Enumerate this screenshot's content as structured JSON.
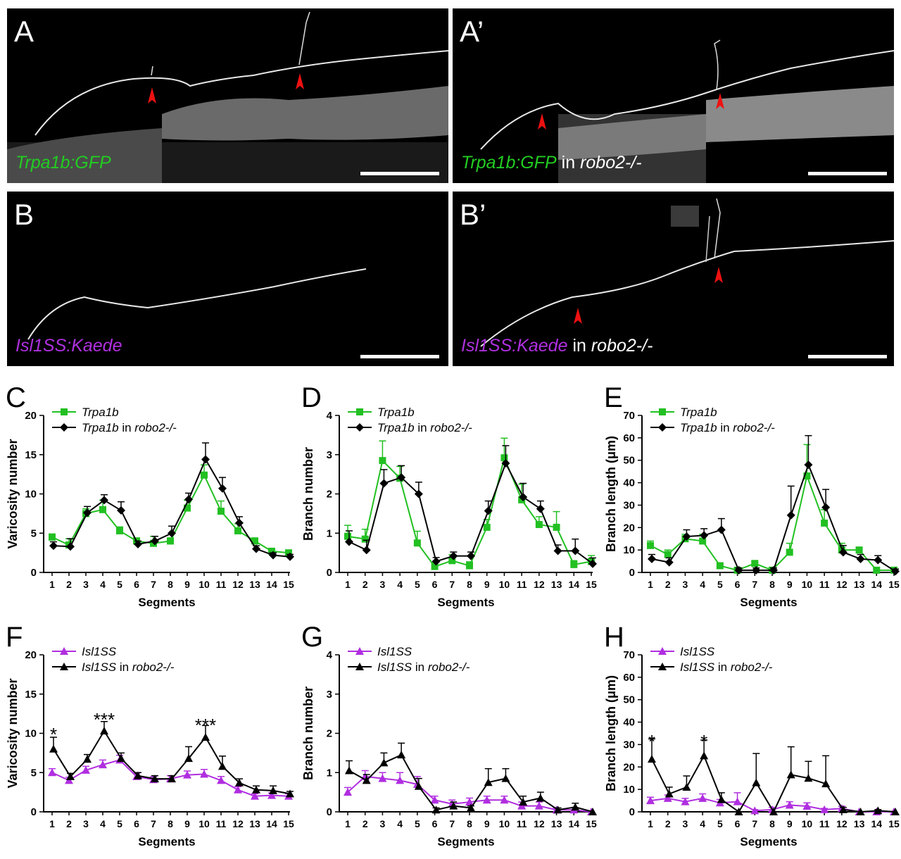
{
  "panels": {
    "A": {
      "letter": "A",
      "caption_italic": "Trpa1b:GFP",
      "caption_rest": "",
      "caption_tail": "",
      "color": "#22cc22"
    },
    "A2": {
      "letter": "A’",
      "caption_italic": "Trpa1b:GFP",
      "caption_rest": " in ",
      "caption_tail": "robo2-/-",
      "color": "#22cc22"
    },
    "B": {
      "letter": "B",
      "caption_italic": "Isl1SS:Kaede",
      "caption_rest": "",
      "caption_tail": "",
      "color": "#b030e0"
    },
    "B2": {
      "letter": "B’",
      "caption_italic": "Isl1SS:Kaede",
      "caption_rest": " in ",
      "caption_tail": "robo2-/-",
      "color": "#b030e0"
    }
  },
  "colors": {
    "green": "#22c022",
    "purple": "#b02ee0",
    "black": "#000000",
    "arrow": "#ee1111"
  },
  "chart_data": [
    {
      "panel": "C",
      "type": "line",
      "xlabel": "Segments",
      "ylabel": "Varicosity number",
      "ylim": [
        0,
        20
      ],
      "yticks": [
        0,
        5,
        10,
        15,
        20
      ],
      "categories": [
        "1",
        "2",
        "3",
        "4",
        "5",
        "6",
        "7",
        "8",
        "9",
        "10",
        "11",
        "12",
        "13",
        "14",
        "15"
      ],
      "marker": "square",
      "legend": [
        {
          "italic": "Trpa1b",
          "rest": ""
        },
        {
          "italic": "Trpa1b",
          "rest": " in robo2-/-"
        }
      ],
      "series": [
        {
          "name": "Trpa1b",
          "color": "#22c022",
          "values": [
            4.5,
            3.5,
            7.5,
            8.0,
            5.3,
            4.0,
            3.7,
            4.0,
            8.2,
            12.4,
            7.8,
            5.3,
            4.0,
            2.7,
            2.5
          ],
          "errors": [
            0.4,
            0.8,
            0.6,
            1.2,
            0.5,
            0.4,
            0.9,
            0.4,
            1.0,
            1.3,
            1.3,
            0.9,
            0.4,
            0.3,
            0.3
          ]
        },
        {
          "name": "Trpa1b in robo2-/-",
          "color": "#000000",
          "values": [
            3.4,
            3.3,
            7.6,
            9.2,
            7.9,
            3.6,
            4.0,
            5.0,
            9.3,
            14.4,
            10.7,
            6.3,
            3.0,
            2.2,
            2.0
          ],
          "errors": [
            0.5,
            1.0,
            0.8,
            0.7,
            1.1,
            0.4,
            0.6,
            0.9,
            0.8,
            2.1,
            1.4,
            0.8,
            0.4,
            0.3,
            0.3
          ]
        }
      ]
    },
    {
      "panel": "D",
      "type": "line",
      "xlabel": "Segments",
      "ylabel": "Branch number",
      "ylim": [
        0,
        4
      ],
      "yticks": [
        0,
        1,
        2,
        3,
        4
      ],
      "categories": [
        "1",
        "2",
        "3",
        "4",
        "5",
        "6",
        "7",
        "8",
        "9",
        "10",
        "11",
        "12",
        "13",
        "14",
        "15"
      ],
      "marker": "square",
      "legend": [
        {
          "italic": "Trpa1b",
          "rest": ""
        },
        {
          "italic": "Trpa1b",
          "rest": " in robo2-/-"
        }
      ],
      "series": [
        {
          "name": "Trpa1b",
          "color": "#22c022",
          "values": [
            0.92,
            0.85,
            2.85,
            2.4,
            0.75,
            0.15,
            0.3,
            0.17,
            1.15,
            2.92,
            1.85,
            1.22,
            1.15,
            0.2,
            0.28
          ],
          "errors": [
            0.28,
            0.25,
            0.5,
            0.3,
            0.3,
            0.1,
            0.15,
            0.1,
            0.2,
            0.5,
            0.4,
            0.2,
            0.4,
            0.1,
            0.15
          ]
        },
        {
          "name": "Trpa1b in robo2-/-",
          "color": "#000000",
          "values": [
            0.78,
            0.57,
            2.27,
            2.42,
            2.0,
            0.28,
            0.42,
            0.42,
            1.57,
            2.78,
            1.92,
            1.62,
            0.55,
            0.55,
            0.22
          ],
          "errors": [
            0.28,
            0.25,
            0.35,
            0.3,
            0.3,
            0.1,
            0.1,
            0.1,
            0.25,
            0.45,
            0.35,
            0.2,
            0.15,
            0.3,
            0.15
          ]
        }
      ]
    },
    {
      "panel": "E",
      "type": "line",
      "xlabel": "Segments",
      "ylabel": "Branch length (μm)",
      "ylim": [
        0,
        70
      ],
      "yticks": [
        0,
        10,
        20,
        30,
        40,
        50,
        60,
        70
      ],
      "categories": [
        "1",
        "2",
        "3",
        "4",
        "5",
        "6",
        "7",
        "8",
        "9",
        "10",
        "11",
        "12",
        "13",
        "14",
        "15"
      ],
      "marker": "square",
      "legend": [
        {
          "italic": "Trpa1b",
          "rest": ""
        },
        {
          "italic": "Trpa1b",
          "rest": " in robo2-/-"
        }
      ],
      "series": [
        {
          "name": "Trpa1b",
          "color": "#22c022",
          "values": [
            12,
            8,
            15,
            14,
            3,
            1,
            4,
            1,
            9,
            43,
            22,
            10,
            10,
            1,
            1
          ],
          "errors": [
            2,
            2,
            2,
            3,
            1,
            1,
            1,
            1,
            4,
            14,
            6,
            3,
            1,
            1,
            1
          ]
        },
        {
          "name": "Trpa1b in robo2-/-",
          "color": "#000000",
          "values": [
            6,
            4.5,
            16,
            16.5,
            19,
            1,
            1,
            1,
            25.5,
            48,
            29,
            9,
            6,
            5.5,
            0.5
          ],
          "errors": [
            2,
            2,
            3,
            3,
            5,
            1,
            1,
            1,
            13,
            13,
            8,
            3,
            2,
            2,
            1
          ]
        }
      ]
    },
    {
      "panel": "F",
      "type": "line",
      "xlabel": "Segments",
      "ylabel": "Varicosity number",
      "ylim": [
        0,
        20
      ],
      "yticks": [
        0,
        5,
        10,
        15,
        20
      ],
      "categories": [
        "1",
        "2",
        "3",
        "4",
        "5",
        "6",
        "7",
        "8",
        "9",
        "10",
        "11",
        "12",
        "13",
        "14",
        "15"
      ],
      "marker": "triangle",
      "legend": [
        {
          "italic": "Isl1SS",
          "rest": ""
        },
        {
          "italic": "Isl1SS",
          "rest": " in robo2-/-"
        }
      ],
      "annotations": [
        {
          "x": 1,
          "text": "*",
          "y": 10.3
        },
        {
          "x": 4,
          "text": "***",
          "y": 12.2
        },
        {
          "x": 10,
          "text": "***",
          "y": 11.5
        }
      ],
      "series": [
        {
          "name": "Isl1SS",
          "color": "#b02ee0",
          "values": [
            5.0,
            4.0,
            5.3,
            6.0,
            6.6,
            4.5,
            4.1,
            4.2,
            4.7,
            4.8,
            4.0,
            2.8,
            2.0,
            2.1,
            2.0
          ],
          "errors": [
            0.5,
            0.4,
            0.5,
            0.6,
            0.6,
            0.4,
            0.4,
            0.4,
            0.5,
            0.6,
            0.5,
            0.4,
            0.3,
            0.3,
            0.3
          ]
        },
        {
          "name": "Isl1SS in robo2-/-",
          "color": "#000000",
          "values": [
            8.0,
            4.5,
            6.7,
            10.3,
            6.8,
            4.6,
            4.2,
            4.2,
            6.8,
            9.5,
            5.8,
            3.7,
            2.8,
            2.7,
            2.3
          ],
          "errors": [
            1.5,
            0.4,
            0.6,
            1.2,
            0.7,
            0.4,
            0.4,
            0.4,
            1.5,
            1.5,
            1.3,
            0.5,
            0.5,
            0.6,
            0.3
          ]
        }
      ]
    },
    {
      "panel": "G",
      "type": "line",
      "xlabel": "Segments",
      "ylabel": "Branch number",
      "ylim": [
        0,
        4
      ],
      "yticks": [
        0,
        1,
        2,
        3,
        4
      ],
      "categories": [
        "1",
        "2",
        "3",
        "4",
        "5",
        "6",
        "7",
        "8",
        "9",
        "10",
        "11",
        "12",
        "13",
        "14",
        "15"
      ],
      "marker": "triangle",
      "legend": [
        {
          "italic": "Isl1SS",
          "rest": ""
        },
        {
          "italic": "Isl1SS",
          "rest": " in robo2-/-"
        }
      ],
      "series": [
        {
          "name": "Isl1SS",
          "color": "#b02ee0",
          "values": [
            0.5,
            0.9,
            0.85,
            0.8,
            0.7,
            0.3,
            0.2,
            0.25,
            0.3,
            0.3,
            0.15,
            0.15,
            0.05,
            0.05,
            0.0
          ],
          "errors": [
            0.12,
            0.15,
            0.15,
            0.2,
            0.2,
            0.1,
            0.1,
            0.1,
            0.1,
            0.1,
            0.1,
            0.1,
            0.05,
            0.05,
            0.0
          ]
        },
        {
          "name": "Isl1SS in robo2-/-",
          "color": "#000000",
          "values": [
            1.05,
            0.8,
            1.25,
            1.45,
            0.65,
            0.05,
            0.15,
            0.1,
            0.75,
            0.85,
            0.25,
            0.35,
            0.05,
            0.12,
            0.0
          ],
          "errors": [
            0.25,
            0.15,
            0.25,
            0.3,
            0.2,
            0.05,
            0.1,
            0.05,
            0.35,
            0.25,
            0.15,
            0.15,
            0.05,
            0.1,
            0.0
          ]
        }
      ]
    },
    {
      "panel": "H",
      "type": "line",
      "xlabel": "Segments",
      "ylabel": "Branch length (μm)",
      "ylim": [
        0,
        70
      ],
      "yticks": [
        0,
        10,
        20,
        30,
        40,
        50,
        60,
        70
      ],
      "categories": [
        "1",
        "2",
        "3",
        "4",
        "5",
        "6",
        "7",
        "8",
        "9",
        "10",
        "11",
        "12",
        "13",
        "14",
        "15"
      ],
      "marker": "triangle",
      "legend": [
        {
          "italic": "Isl1SS",
          "rest": ""
        },
        {
          "italic": "Isl1SS",
          "rest": " in robo2-/-"
        }
      ],
      "annotations": [
        {
          "x": 1,
          "text": "*",
          "y": 33
        },
        {
          "x": 4,
          "text": "*",
          "y": 33
        }
      ],
      "series": [
        {
          "name": "Isl1SS",
          "color": "#b02ee0",
          "values": [
            5,
            6,
            4.5,
            6,
            4,
            4.5,
            0.5,
            1,
            3,
            2.5,
            1,
            1.5,
            0,
            0,
            0
          ],
          "errors": [
            1.5,
            1.5,
            1.5,
            2,
            1.5,
            4,
            0.5,
            1,
            1.5,
            1.5,
            0.5,
            1,
            0,
            0,
            0
          ]
        },
        {
          "name": "Isl1SS in robo2-/-",
          "color": "#000000",
          "values": [
            23.5,
            8,
            11,
            25,
            5.5,
            0,
            13,
            0,
            16.5,
            15,
            12.5,
            1,
            0,
            0.5,
            0
          ],
          "errors": [
            9,
            3,
            5,
            7,
            3,
            0,
            13,
            0,
            12.5,
            7.5,
            12.5,
            1,
            0,
            0.5,
            0
          ]
        }
      ]
    }
  ]
}
